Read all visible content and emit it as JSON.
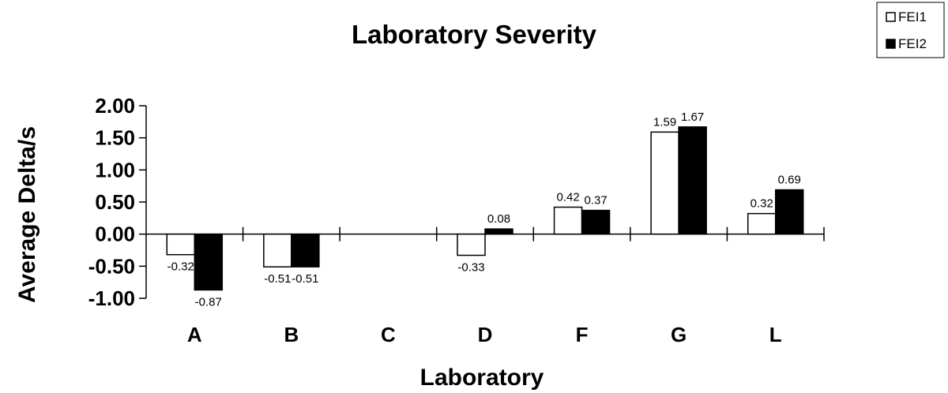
{
  "chart_data": {
    "type": "bar",
    "title": "Laboratory Severity",
    "xlabel": "Laboratory",
    "ylabel": "Average Delta/s",
    "ylim": [
      -1.0,
      2.0
    ],
    "yticks": [
      "2.00",
      "1.50",
      "1.00",
      "0.50",
      "0.00",
      "-0.50",
      "-1.00"
    ],
    "categories": [
      "A",
      "B",
      "C",
      "D",
      "F",
      "G",
      "L"
    ],
    "series": [
      {
        "name": "FEI1",
        "color": "#ffffff",
        "values": [
          -0.32,
          -0.51,
          null,
          -0.33,
          0.42,
          1.59,
          0.32
        ],
        "labels": [
          "-0.32",
          "-0.51",
          "",
          "-0.33",
          "0.42",
          "1.59",
          "0.32"
        ]
      },
      {
        "name": "FEI2",
        "color": "#000000",
        "values": [
          -0.87,
          -0.51,
          null,
          0.08,
          0.37,
          1.67,
          0.69
        ],
        "labels": [
          "-0.87",
          "-0.51",
          "",
          "0.08",
          "0.37",
          "1.67",
          "0.69"
        ]
      }
    ],
    "legend_position": "top-right",
    "grid": false
  }
}
